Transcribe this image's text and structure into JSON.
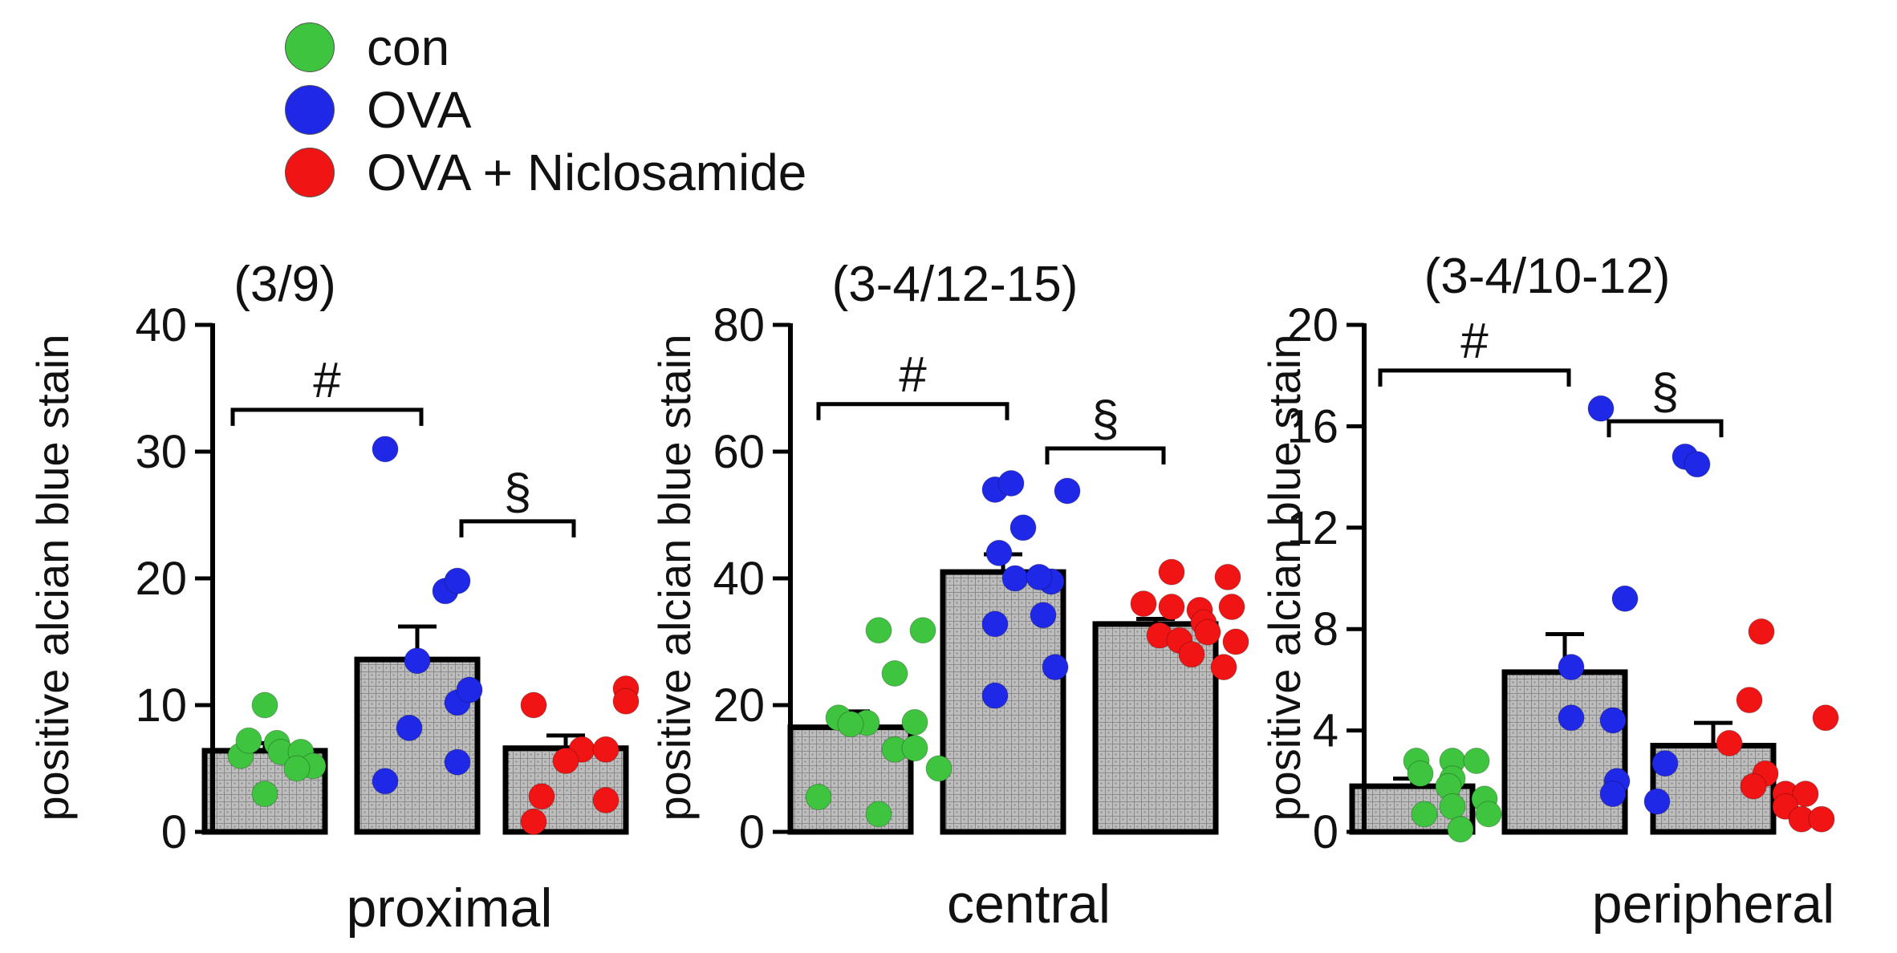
{
  "legend": {
    "items": [
      {
        "label": "con",
        "color": "#3ec43e"
      },
      {
        "label": "OVA",
        "color": "#1e28e6"
      },
      {
        "label": "OVA + Niclosamide",
        "color": "#f01414"
      }
    ]
  },
  "chart_data": [
    {
      "type": "bar",
      "title": "(3/9)",
      "xlabel": "proximal",
      "ylabel": "positive alcian blue stain",
      "ylim": [
        0,
        40
      ],
      "yticks": [
        0,
        10,
        20,
        30,
        40
      ],
      "categories": [
        "con",
        "OVA",
        "OVA + Niclosamide"
      ],
      "values": [
        6.4,
        13.6,
        6.6
      ],
      "sem": [
        0.6,
        2.6,
        1.0
      ],
      "points": [
        [
          10.0,
          7.0,
          6.3,
          6.3,
          6.0,
          7.2,
          5.2,
          5.0,
          3.0
        ],
        [
          30.2,
          13.5,
          8.2,
          4.0,
          19.0,
          19.8,
          10.2,
          11.2,
          5.5
        ],
        [
          10.0,
          6.5,
          6.5,
          2.8,
          0.8,
          11.3,
          10.3,
          2.5,
          5.6
        ]
      ],
      "significance": [
        {
          "symbol": "#",
          "from": 0,
          "to": 1,
          "y": 33.3
        },
        {
          "symbol": "§",
          "from": 1,
          "to": 2,
          "y": 24.5
        }
      ]
    },
    {
      "type": "bar",
      "title": "(3-4/12-15)",
      "xlabel": "central",
      "ylabel": "positive alcian blue stain",
      "ylim": [
        0,
        80
      ],
      "yticks": [
        0,
        20,
        40,
        60,
        80
      ],
      "categories": [
        "con",
        "OVA",
        "OVA + Niclosamide"
      ],
      "values": [
        16.5,
        41.0,
        32.8
      ],
      "sem": [
        2.5,
        2.8,
        0.8
      ],
      "points": [
        [
          31.8,
          31.8,
          25.0,
          17.2,
          18.0,
          17.0,
          17.3,
          13.0,
          13.2,
          10.0,
          5.5,
          2.8
        ],
        [
          54.0,
          55.0,
          53.8,
          48.0,
          44.0,
          40.0,
          39.5,
          40.2,
          32.8,
          34.2,
          26.0,
          21.5
        ],
        [
          41.0,
          36.0,
          35.5,
          35.0,
          31.0,
          30.2,
          40.2,
          35.5,
          33.0,
          31.5,
          28.0,
          26.0,
          30.0
        ]
      ],
      "significance": [
        {
          "symbol": "#",
          "from": 0,
          "to": 1,
          "y": 67.5
        },
        {
          "symbol": "§",
          "from": 1,
          "to": 2,
          "y": 60.5
        }
      ]
    },
    {
      "type": "bar",
      "title": "(3-4/10-12)",
      "xlabel": "peripheral",
      "ylabel": "positive alcian blue stain",
      "ylim": [
        0,
        20
      ],
      "yticks": [
        0,
        4,
        8,
        12,
        16,
        20
      ],
      "categories": [
        "con",
        "OVA",
        "OVA + Niclosamide"
      ],
      "values": [
        1.8,
        6.3,
        3.4
      ],
      "sem": [
        0.3,
        1.5,
        0.9
      ],
      "points": [
        [
          2.8,
          2.8,
          2.8,
          2.3,
          2.1,
          1.8,
          1.3,
          1.0,
          0.7,
          0.7,
          0.1
        ],
        [
          16.7,
          9.2,
          6.5,
          4.5,
          4.4,
          2.0,
          1.5,
          1.2,
          14.8,
          14.5,
          2.7
        ],
        [
          7.9,
          5.2,
          3.5,
          4.5,
          2.3,
          1.8,
          1.5,
          1.5,
          1.0,
          0.5,
          0.5
        ]
      ],
      "significance": [
        {
          "symbol": "#",
          "from": 0,
          "to": 1,
          "y": 18.2
        },
        {
          "symbol": "§",
          "from": 1,
          "to": 2,
          "y": 16.2
        }
      ]
    }
  ]
}
